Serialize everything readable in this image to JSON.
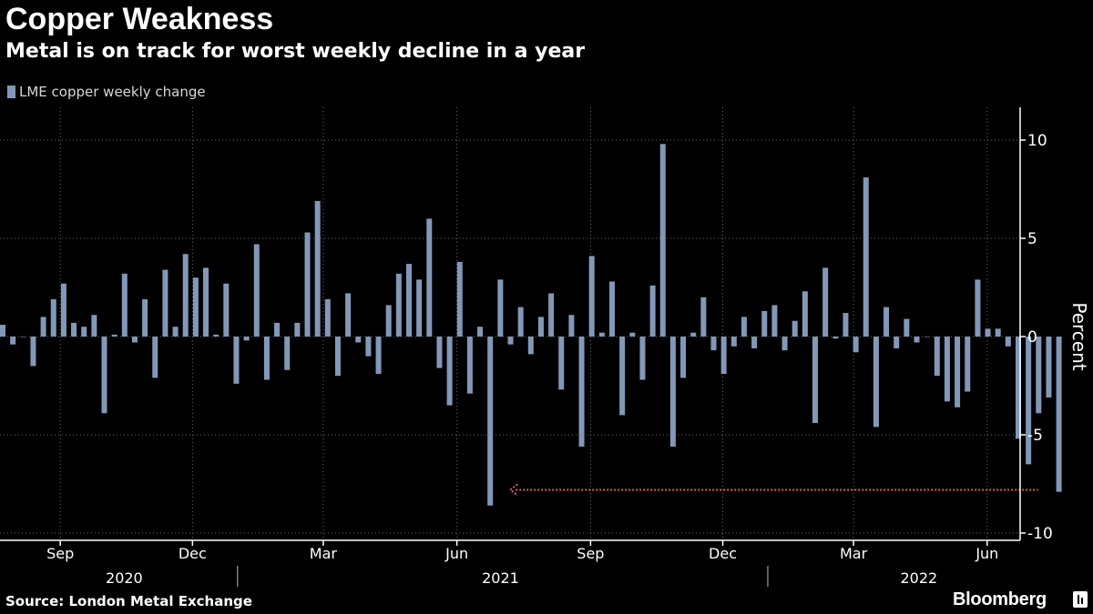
{
  "title": "Copper Weakness",
  "subtitle": "Metal is on track for worst weekly decline in a year",
  "source": "Source: London Metal Exchange",
  "brand": "Bloomberg",
  "colors": {
    "bar": "#8398b8",
    "background": "#000000",
    "arrow": "#e06060",
    "grid": "#6a6a6a",
    "axis": "#ffffff"
  },
  "chart_data": {
    "type": "bar",
    "title": "Copper Weakness",
    "subtitle": "Metal is on track for worst weekly decline in a year",
    "series": [
      {
        "name": "LME copper weekly change",
        "color": "#8398b8"
      }
    ],
    "ylabel": "Percent",
    "ylim": [
      -10,
      11
    ],
    "yticks": [
      10,
      5,
      0,
      -5,
      -10
    ],
    "grid": true,
    "legend_position": "top-left",
    "x_start": "2020-07-24",
    "x_tick_labels": [
      "Sep",
      "Dec",
      "Mar",
      "Jun",
      "Sep",
      "Dec",
      "Mar",
      "Jun"
    ],
    "x_tick_dates": [
      "2020-09-01",
      "2020-12-01",
      "2021-03-01",
      "2021-06-01",
      "2021-09-01",
      "2021-12-01",
      "2022-03-01",
      "2022-06-01"
    ],
    "year_labels": [
      "2020",
      "2021",
      "2022"
    ],
    "annotation": "Arrow pointing back to the prior worst weekly decline (June 2021)",
    "weekly_change_percent": [
      0.6,
      -0.4,
      0,
      -1.5,
      1.0,
      1.9,
      2.7,
      0.7,
      0.5,
      1.1,
      -3.9,
      0.1,
      3.2,
      -0.3,
      1.9,
      -2.1,
      3.4,
      0.5,
      4.2,
      3.0,
      3.5,
      0.1,
      2.7,
      -2.4,
      -0.2,
      4.7,
      -2.2,
      0.7,
      -1.7,
      0.7,
      5.3,
      6.9,
      1.9,
      -2.0,
      2.2,
      -0.3,
      -1.0,
      -1.9,
      1.6,
      3.2,
      3.7,
      2.9,
      6.0,
      -1.6,
      -3.5,
      3.8,
      -2.9,
      0.5,
      -8.6,
      2.9,
      -0.4,
      1.5,
      -0.9,
      1.0,
      2.2,
      -2.7,
      1.1,
      -5.6,
      4.1,
      0.2,
      2.8,
      -4.0,
      0.2,
      -2.2,
      2.6,
      9.8,
      -5.6,
      -2.1,
      0.2,
      2.0,
      -0.7,
      -1.9,
      -0.5,
      1.0,
      -0.6,
      1.3,
      1.6,
      -0.7,
      0.8,
      2.3,
      -4.4,
      3.5,
      -0.1,
      1.2,
      -0.8,
      8.1,
      -4.6,
      1.5,
      -0.6,
      0.9,
      -0.3,
      0,
      -2.0,
      -3.3,
      -3.6,
      -2.8,
      2.9,
      0.4,
      0.4,
      -0.5,
      -5.2,
      -6.5,
      -3.9,
      -3.1,
      -7.9
    ]
  }
}
